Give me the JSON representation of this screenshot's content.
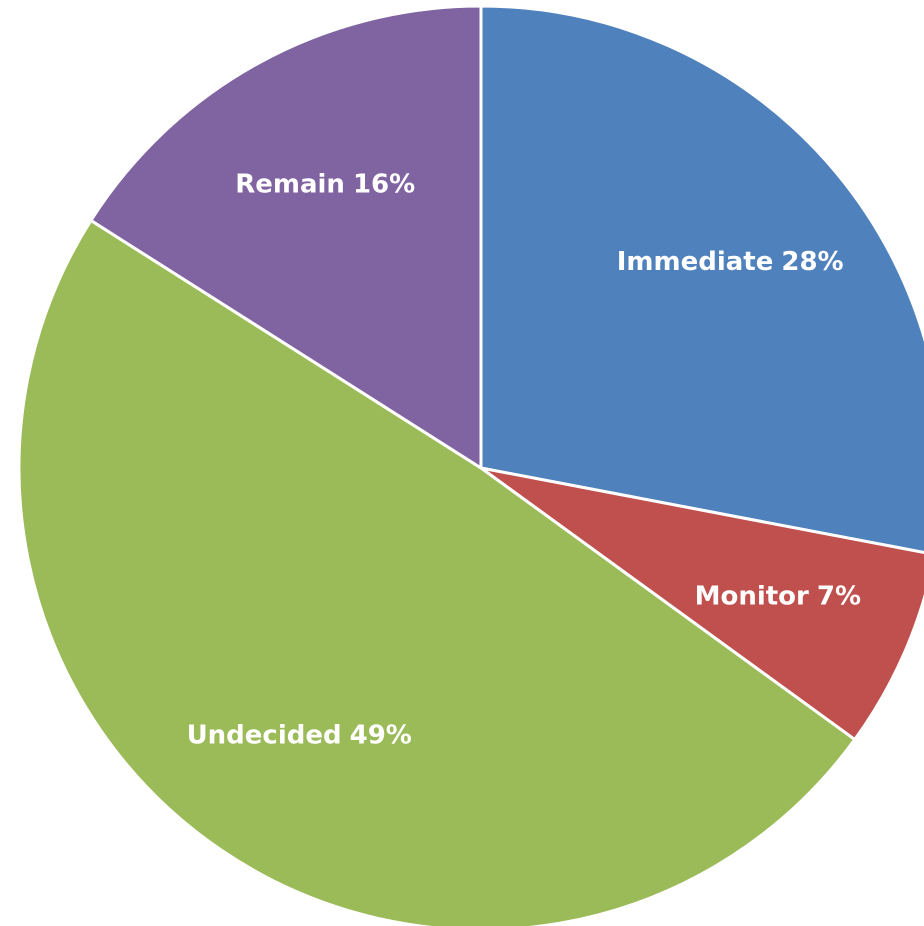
{
  "chart_data": {
    "type": "pie",
    "categories": [
      "Immediate",
      "Monitor",
      "Undecided",
      "Remain"
    ],
    "values": [
      28,
      7,
      49,
      16
    ],
    "value_labels": [
      "28%",
      "7%",
      "49%",
      "16%"
    ],
    "colors": [
      "#4f81bd",
      "#c0504d",
      "#9bbb59",
      "#8064a2"
    ]
  }
}
